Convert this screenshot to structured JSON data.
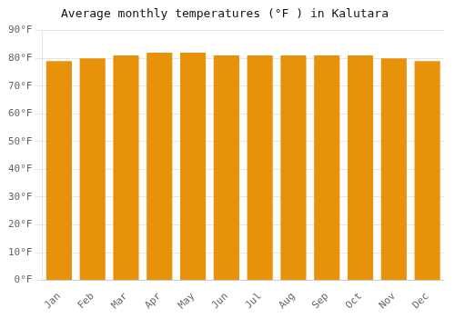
{
  "chart_data": {
    "type": "bar",
    "title": "Average monthly temperatures (°F ) in Kalutara",
    "categories": [
      "Jan",
      "Feb",
      "Mar",
      "Apr",
      "May",
      "Jun",
      "Jul",
      "Aug",
      "Sep",
      "Oct",
      "Nov",
      "Dec"
    ],
    "values": [
      79,
      80,
      81,
      82,
      82,
      81,
      81,
      81,
      81,
      81,
      80,
      79
    ],
    "color": "#E8920A",
    "ylim": [
      0,
      90
    ],
    "yticks": [
      {
        "value": 0,
        "label": "0°F"
      },
      {
        "value": 10,
        "label": "10°F"
      },
      {
        "value": 20,
        "label": "20°F"
      },
      {
        "value": 30,
        "label": "30°F"
      },
      {
        "value": 40,
        "label": "40°F"
      },
      {
        "value": 50,
        "label": "50°F"
      },
      {
        "value": 60,
        "label": "60°F"
      },
      {
        "value": 70,
        "label": "70°F"
      },
      {
        "value": 80,
        "label": "80°F"
      },
      {
        "value": 90,
        "label": "90°F"
      }
    ],
    "grid": true
  }
}
